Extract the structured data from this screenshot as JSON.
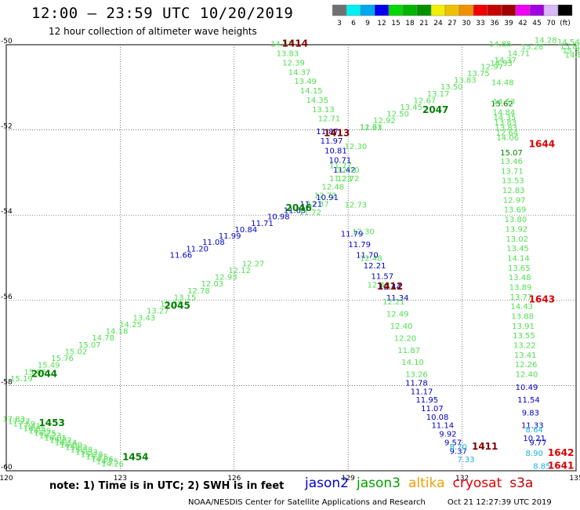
{
  "title": "12:00 – 23:59 UTC 10/20/2019",
  "subtitle": "12 hour collection of altimeter wave heights",
  "legend": {
    "colors": [
      "#707070",
      "#00f0f0",
      "#00a8f0",
      "#0000f0",
      "#00d800",
      "#00b400",
      "#009000",
      "#f0f000",
      "#f0c000",
      "#f09000",
      "#f00000",
      "#c80000",
      "#a00000",
      "#f000f0",
      "#a000e0",
      "#d8b8f8",
      "#000000"
    ],
    "labels": [
      "3",
      "6",
      "9",
      "12",
      "15",
      "18",
      "21",
      "24",
      "27",
      "30",
      "33",
      "36",
      "39",
      "42",
      "45",
      "70",
      "(ft)"
    ]
  },
  "axes": {
    "lon_ticks": [
      "120",
      "123",
      "126",
      "129",
      "132",
      "135"
    ],
    "lat_ticks": [
      "-50",
      "-52",
      "-54",
      "-56",
      "-58",
      "-60"
    ]
  },
  "note": "note: 1) Time is in UTC; 2) SWH is in feet",
  "satellites": [
    {
      "name": "jason2",
      "color": "#0000d8"
    },
    {
      "name": "jason3",
      "color": "#00a000"
    },
    {
      "name": "altika",
      "color": "#f0a000"
    },
    {
      "name": "cryosat",
      "color": "#e00000"
    },
    {
      "name": "s3a",
      "color": "#c00000"
    }
  ],
  "footer": {
    "center": "NOAA/NESDIS Center for Satellite Applications and Research",
    "timestamp": "Oct 21 12:27:39 UTC 2019"
  },
  "colors": {
    "light_green": "#50e050",
    "dark_green": "#008000",
    "blue": "#0000c8",
    "cyan": "#18b0e0",
    "dark_red": "#800000",
    "red": "#e00000"
  },
  "pass_labels": [
    {
      "text": "1414",
      "lon": 127.6,
      "lat": -50.05,
      "c": "dark_red"
    },
    {
      "text": "1413",
      "lon": 128.7,
      "lat": -52.15,
      "c": "dark_red"
    },
    {
      "text": "1412",
      "lon": 130.1,
      "lat": -55.75,
      "c": "dark_red"
    },
    {
      "text": "1411",
      "lon": 132.6,
      "lat": -59.5,
      "c": "dark_red"
    },
    {
      "text": "2047",
      "lon": 131.3,
      "lat": -51.6,
      "c": "dark_green"
    },
    {
      "text": "2046",
      "lon": 127.7,
      "lat": -53.9,
      "c": "dark_green"
    },
    {
      "text": "2045",
      "lon": 124.5,
      "lat": -56.2,
      "c": "dark_green"
    },
    {
      "text": "2044",
      "lon": 121.0,
      "lat": -57.8,
      "c": "dark_green"
    },
    {
      "text": "1453",
      "lon": 121.2,
      "lat": -58.95,
      "c": "dark_green"
    },
    {
      "text": "1454",
      "lon": 123.4,
      "lat": -59.75,
      "c": "dark_green"
    },
    {
      "text": "1644",
      "lon": 134.1,
      "lat": -52.4,
      "c": "red"
    },
    {
      "text": "1643",
      "lon": 134.1,
      "lat": -56.05,
      "c": "red"
    },
    {
      "text": "1642",
      "lon": 134.6,
      "lat": -59.65,
      "c": "red"
    },
    {
      "text": "1641",
      "lon": 134.6,
      "lat": -59.95,
      "c": "red"
    }
  ],
  "swh_tracks": [
    {
      "c": "light_green",
      "lon0": 127.25,
      "lat0": -50.05,
      "lon1": 128.5,
      "lat1": -51.8,
      "values": [
        "14.57",
        "13.83",
        "12.39",
        "14.37",
        "13.49",
        "14.15",
        "14.35",
        "13.13",
        "12.71"
      ]
    },
    {
      "c": "blue",
      "lon0": 128.45,
      "lat0": -52.1,
      "lon1": 128.9,
      "lat1": -53.0,
      "values": [
        "11.87",
        "11.97",
        "10.81",
        "10.71",
        "11.42"
      ]
    },
    {
      "c": "light_green",
      "lon0": 129.0,
      "lat0": -53.2,
      "lon1": 129.8,
      "lat1": -55.7,
      "values": [
        "12.72",
        "12.73",
        "12.30",
        "12.48",
        "12.40"
      ]
    },
    {
      "c": "blue",
      "lon0": 129.1,
      "lat0": -54.5,
      "lon1": 130.3,
      "lat1": -56.0,
      "values": [
        "11.79",
        "11.79",
        "11.70",
        "12.21",
        "11.57",
        "12.44",
        "11.34"
      ]
    },
    {
      "c": "light_green",
      "lon0": 130.2,
      "lat0": -56.1,
      "lon1": 130.8,
      "lat1": -57.8,
      "values": [
        "12.21",
        "12.49",
        "12.40",
        "12.20",
        "11.87",
        "14.10",
        "13.26"
      ]
    },
    {
      "c": "blue",
      "lon0": 130.8,
      "lat0": -58.0,
      "lon1": 131.9,
      "lat1": -59.6,
      "values": [
        "11.78",
        "11.17",
        "11.95",
        "11.07",
        "10.08",
        "11.14",
        "9.92",
        "9.57",
        "9.37"
      ]
    },
    {
      "c": "cyan",
      "lon0": 131.9,
      "lat0": -59.5,
      "lon1": 132.1,
      "lat1": -59.8,
      "values": [
        "8.70",
        "7.33"
      ]
    },
    {
      "c": "light_green",
      "lon0": 129.0,
      "lat0": -53.0,
      "lon1": 128.0,
      "lat1": -54.0,
      "values": [
        "12.10",
        "11.23",
        "12.48",
        "12.72",
        "12.37",
        "11.72"
      ]
    },
    {
      "c": "blue",
      "lon0": 128.45,
      "lat0": -53.65,
      "lon1": 124.6,
      "lat1": -55.0,
      "values": [
        "10.91",
        "11.21",
        "11.65",
        "10.98",
        "11.71",
        "10.84",
        "11.99",
        "11.08",
        "11.20",
        "11.66"
      ]
    },
    {
      "c": "light_green",
      "lon0": 126.5,
      "lat0": -55.2,
      "lon1": 120.4,
      "lat1": -57.9,
      "values": [
        "12.27",
        "12.12",
        "12.93",
        "12.03",
        "12.78",
        "13.15",
        "13.35",
        "13.27",
        "13.43",
        "14.25",
        "14.18",
        "14.78",
        "15.07",
        "15.02",
        "15.76",
        "15.49",
        "15.66",
        "15.19"
      ]
    },
    {
      "c": "light_green",
      "lon0": 134.2,
      "lat0": -49.95,
      "lon1": 129.6,
      "lat1": -52.0,
      "values": [
        "14.28",
        "15.28",
        "14.71",
        "14.37",
        "12.97",
        "13.75",
        "13.83",
        "13.50",
        "13.17",
        "12.67",
        "13.45",
        "12.50",
        "12.92",
        "11.71"
      ]
    },
    {
      "c": "light_green",
      "lon0": 129.6,
      "lat0": -52.0,
      "lon1": 128.8,
      "lat1": -52.9,
      "values": [
        "12.63",
        "12.30",
        "11.77"
      ]
    },
    {
      "c": "light_green",
      "lon0": 133.0,
      "lat0": -50.05,
      "lon1": 133.1,
      "lat1": -51.4,
      "values": [
        "14.88",
        "14.93",
        "14.48",
        "14.53"
      ]
    },
    {
      "c": "dark_green",
      "lon0": 133.05,
      "lat0": -51.45,
      "lon1": 133.05,
      "lat1": -51.45,
      "values": [
        "15.62"
      ]
    },
    {
      "c": "light_green",
      "lon0": 133.1,
      "lat0": -51.65,
      "lon1": 133.2,
      "lat1": -52.25,
      "values": [
        "14.84",
        "14.35",
        "13.83",
        "13.83",
        "12.64",
        "14.06"
      ]
    },
    {
      "c": "dark_green",
      "lon0": 133.3,
      "lat0": -52.6,
      "lon1": 133.3,
      "lat1": -52.6,
      "values": [
        "15.07"
      ]
    },
    {
      "c": "light_green",
      "lon0": 133.3,
      "lat0": -52.8,
      "lon1": 133.7,
      "lat1": -57.8,
      "values": [
        "13.46",
        "13.71",
        "13.53",
        "12.83",
        "12.97",
        "13.69",
        "13.80",
        "13.92",
        "13.02",
        "13.45",
        "14.14",
        "13.65",
        "13.48",
        "13.89",
        "13.77",
        "14.43",
        "13.88",
        "13.91",
        "13.55",
        "13.22",
        "13.41",
        "12.26",
        "12.40"
      ]
    },
    {
      "c": "blue",
      "lon0": 133.7,
      "lat0": -58.1,
      "lon1": 133.9,
      "lat1": -59.3,
      "values": [
        "10.49",
        "11.54",
        "9.83",
        "11.33",
        "10.21"
      ]
    },
    {
      "c": "cyan",
      "lon0": 133.9,
      "lat0": -59.1,
      "lon1": 133.9,
      "lat1": -59.1,
      "values": [
        "8.64"
      ]
    },
    {
      "c": "blue",
      "lon0": 134.0,
      "lat0": -59.4,
      "lon1": 134.0,
      "lat1": -59.4,
      "values": [
        "9.77"
      ]
    },
    {
      "c": "cyan",
      "lon0": 133.9,
      "lat0": -59.65,
      "lon1": 134.1,
      "lat1": -59.95,
      "values": [
        "8.90",
        "8.85"
      ]
    },
    {
      "c": "light_green",
      "lon0": 134.8,
      "lat0": -50.0,
      "lon1": 135.0,
      "lat1": -50.3,
      "values": [
        "14.54",
        "15.80",
        "15.32",
        "14.88"
      ]
    },
    {
      "c": "light_green",
      "lon0": 120.2,
      "lat0": -58.85,
      "lon1": 122.8,
      "lat1": -59.9,
      "values": [
        "17.83",
        "17.77",
        "17.59",
        "17.41",
        "16.85",
        "16.99",
        "16.25",
        "16.23",
        "16.05",
        "15.62",
        "16.14",
        "16.00",
        "15.83",
        "15.58",
        "15.32",
        "15.28",
        "15.15",
        "14.86",
        "14.15",
        "14.26"
      ]
    }
  ]
}
